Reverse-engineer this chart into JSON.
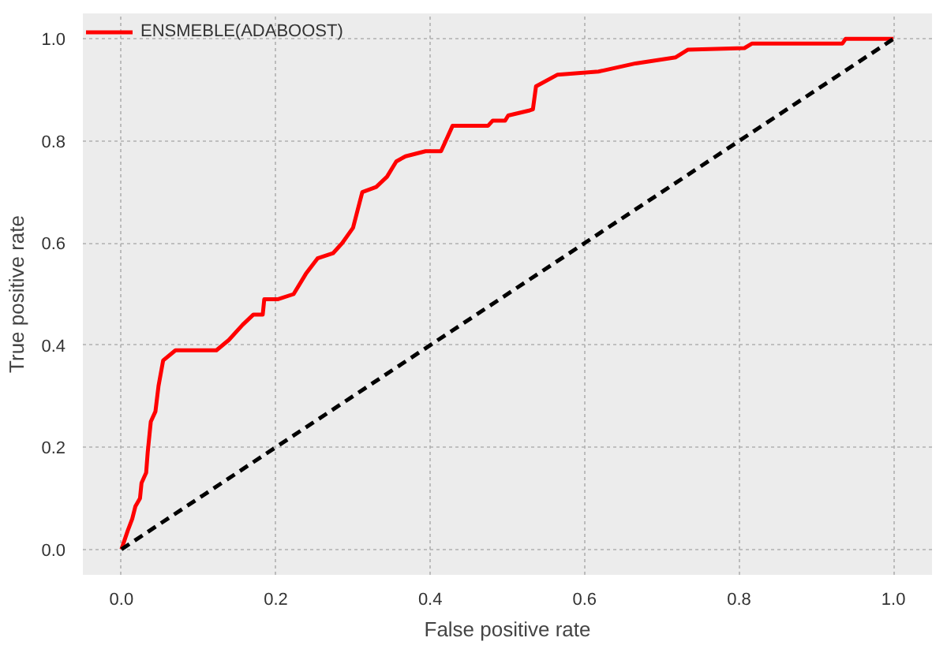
{
  "chart_data": {
    "type": "line",
    "xlabel": "False positive rate",
    "ylabel": "True positive rate",
    "xlim": [
      -0.05,
      1.05
    ],
    "ylim": [
      -0.05,
      1.05
    ],
    "xticks": [
      {
        "value": 0,
        "label": "0.0"
      },
      {
        "value": 0.2,
        "label": "0.2"
      },
      {
        "value": 0.4,
        "label": "0.4"
      },
      {
        "value": 0.6,
        "label": "0.6"
      },
      {
        "value": 0.8,
        "label": "0.8"
      },
      {
        "value": 1,
        "label": "1.0"
      }
    ],
    "yticks": [
      {
        "value": 0,
        "label": "0.0"
      },
      {
        "value": 0.2,
        "label": "0.2"
      },
      {
        "value": 0.4,
        "label": "0.4"
      },
      {
        "value": 0.6,
        "label": "0.6"
      },
      {
        "value": 0.8,
        "label": "0.8"
      },
      {
        "value": 1,
        "label": "1.0"
      }
    ],
    "grid": true,
    "legend": "top left",
    "marker": "none",
    "series": [
      {
        "name": "ENSMEBLE(ADABOOST)",
        "color": "#ff0000",
        "line_style": "solid",
        "x": [
          0,
          0.008,
          0.014,
          0.018,
          0.024,
          0.026,
          0.032,
          0.034,
          0.038,
          0.044,
          0.048,
          0.054,
          0.07,
          0.123,
          0.139,
          0.157,
          0.171,
          0.183,
          0.185,
          0.203,
          0.223,
          0.239,
          0.254,
          0.274,
          0.286,
          0.3,
          0.312,
          0.33,
          0.344,
          0.356,
          0.368,
          0.394,
          0.414,
          0.423,
          0.429,
          0.475,
          0.481,
          0.497,
          0.501,
          0.529,
          0.533,
          0.537,
          0.565,
          0.618,
          0.666,
          0.718,
          0.734,
          0.807,
          0.817,
          0.934,
          0.938,
          1
        ],
        "values": [
          0,
          0.036,
          0.06,
          0.084,
          0.1,
          0.13,
          0.15,
          0.19,
          0.25,
          0.27,
          0.32,
          0.37,
          0.39,
          0.39,
          0.41,
          0.44,
          0.46,
          0.46,
          0.49,
          0.49,
          0.5,
          0.54,
          0.57,
          0.58,
          0.6,
          0.63,
          0.7,
          0.71,
          0.73,
          0.76,
          0.77,
          0.78,
          0.78,
          0.81,
          0.83,
          0.83,
          0.84,
          0.84,
          0.85,
          0.86,
          0.862,
          0.907,
          0.93,
          0.936,
          0.952,
          0.964,
          0.979,
          0.982,
          0.991,
          0.991,
          1.0,
          1.0
        ]
      },
      {
        "color": "#000000",
        "line_style": "dashed",
        "x": [
          0,
          1
        ],
        "values": [
          0,
          1
        ]
      }
    ]
  }
}
